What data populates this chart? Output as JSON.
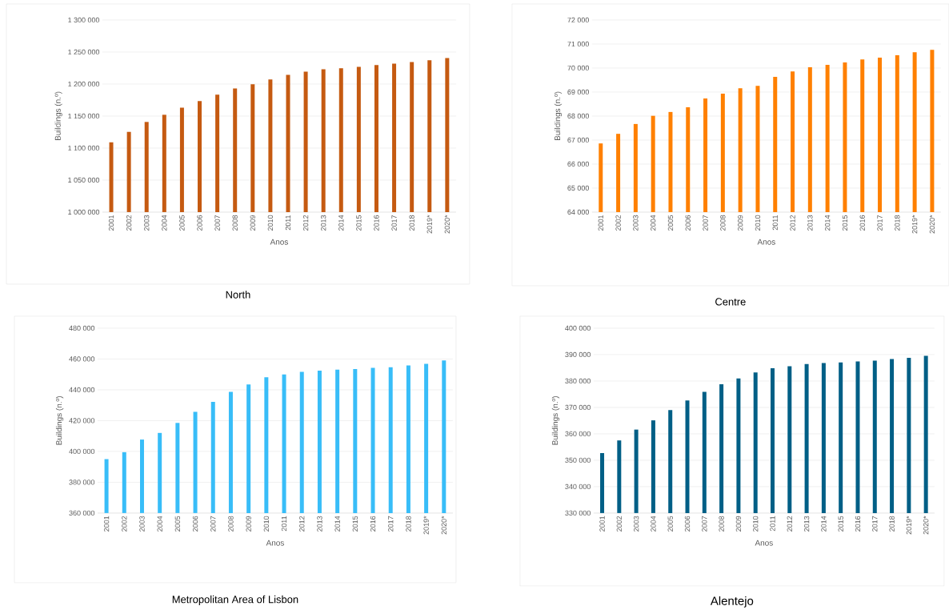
{
  "chart_data": [
    {
      "type": "bar",
      "title": "North",
      "xlabel": "Anos",
      "ylabel": "Buildings  (n.º)",
      "categories": [
        "2001",
        "2002",
        "2003",
        "2004",
        "2005",
        "2006",
        "2007",
        "2008",
        "2009",
        "2010",
        "2011",
        "2012",
        "2013",
        "2014",
        "2015",
        "2016",
        "2017",
        "2018",
        "2019*",
        "2020*"
      ],
      "values": [
        1109000,
        1125300,
        1140800,
        1152000,
        1163000,
        1173400,
        1183400,
        1193000,
        1199700,
        1207200,
        1214300,
        1219300,
        1223100,
        1224700,
        1226800,
        1229700,
        1231800,
        1234300,
        1237300,
        1240600
      ],
      "color": "#c55a11",
      "ylim": [
        1000000,
        1300000
      ],
      "yticks": [
        {
          "value": 1000000,
          "label": "1 000 000"
        },
        {
          "value": 1050000,
          "label": "1 050 000"
        },
        {
          "value": 1100000,
          "label": "1 100 000"
        },
        {
          "value": 1150000,
          "label": "1 150 000"
        },
        {
          "value": 1200000,
          "label": "1 200 000"
        },
        {
          "value": 1250000,
          "label": "1 250 000"
        },
        {
          "value": 1300000,
          "label": "1 300 000"
        }
      ],
      "grid": "y"
    },
    {
      "type": "bar",
      "title": "Centre",
      "xlabel": "Anos",
      "ylabel": "Buildings  (n.º)",
      "categories": [
        "2001",
        "2002",
        "2003",
        "2004",
        "2005",
        "2006",
        "2007",
        "2008",
        "2009",
        "2010",
        "2011",
        "2012",
        "2013",
        "2014",
        "2015",
        "2016",
        "2017",
        "2018",
        "2019*",
        "2020*"
      ],
      "values": [
        66860,
        67260,
        67670,
        68010,
        68170,
        68370,
        68730,
        68930,
        69160,
        69260,
        69630,
        69860,
        70030,
        70130,
        70230,
        70360,
        70430,
        70530,
        70660,
        70760
      ],
      "color": "#ff8000",
      "ylim": [
        64000,
        72000
      ],
      "yticks": [
        {
          "value": 64000,
          "label": "64 000"
        },
        {
          "value": 65000,
          "label": "65 000"
        },
        {
          "value": 66000,
          "label": "66 000"
        },
        {
          "value": 67000,
          "label": "67 000"
        },
        {
          "value": 68000,
          "label": "68 000"
        },
        {
          "value": 69000,
          "label": "69 000"
        },
        {
          "value": 70000,
          "label": "70 000"
        },
        {
          "value": 71000,
          "label": "71 000"
        },
        {
          "value": 72000,
          "label": "72 000"
        }
      ],
      "grid": "y"
    },
    {
      "type": "bar",
      "title": "Metropolitan Area of Lisbon",
      "xlabel": "Anos",
      "ylabel": "Buildings  (n.º)",
      "categories": [
        "2001",
        "2002",
        "2003",
        "2004",
        "2005",
        "2006",
        "2007",
        "2008",
        "2009",
        "2010",
        "2011",
        "2012",
        "2013",
        "2014",
        "2015",
        "2016",
        "2017",
        "2018",
        "2019*",
        "2020*"
      ],
      "values": [
        395000,
        399500,
        407700,
        412000,
        418500,
        425700,
        432100,
        438700,
        443400,
        448100,
        450000,
        451700,
        452400,
        453100,
        453500,
        454200,
        454700,
        455800,
        456900,
        459000
      ],
      "color": "#38bdf8",
      "ylim": [
        360000,
        480000
      ],
      "yticks": [
        {
          "value": 360000,
          "label": "360 000"
        },
        {
          "value": 380000,
          "label": "380 000"
        },
        {
          "value": 400000,
          "label": "400 000"
        },
        {
          "value": 420000,
          "label": "420 000"
        },
        {
          "value": 440000,
          "label": "440 000"
        },
        {
          "value": 460000,
          "label": "460 000"
        },
        {
          "value": 480000,
          "label": "480 000"
        }
      ],
      "grid": "y"
    },
    {
      "type": "bar",
      "title": "Alentejo",
      "xlabel": "Anos",
      "ylabel": "Buildings  (n.º)",
      "categories": [
        "2001",
        "2002",
        "2003",
        "2004",
        "2005",
        "2006",
        "2007",
        "2008",
        "2009",
        "2010",
        "2011",
        "2012",
        "2013",
        "2014",
        "2015",
        "2016",
        "2017",
        "2018",
        "2019*",
        "2020*"
      ],
      "values": [
        352700,
        357500,
        361600,
        365100,
        369000,
        372600,
        375900,
        378800,
        381000,
        383200,
        384800,
        385600,
        386400,
        386800,
        387000,
        387400,
        387700,
        388300,
        388800,
        389500
      ],
      "color": "#005f86",
      "ylim": [
        330000,
        400000
      ],
      "yticks": [
        {
          "value": 330000,
          "label": "330 000"
        },
        {
          "value": 340000,
          "label": "340 000"
        },
        {
          "value": 350000,
          "label": "350 000"
        },
        {
          "value": 360000,
          "label": "360 000"
        },
        {
          "value": 370000,
          "label": "370 000"
        },
        {
          "value": 380000,
          "label": "380 000"
        },
        {
          "value": 390000,
          "label": "390 000"
        },
        {
          "value": 400000,
          "label": "400 000"
        }
      ],
      "grid": "y"
    }
  ]
}
